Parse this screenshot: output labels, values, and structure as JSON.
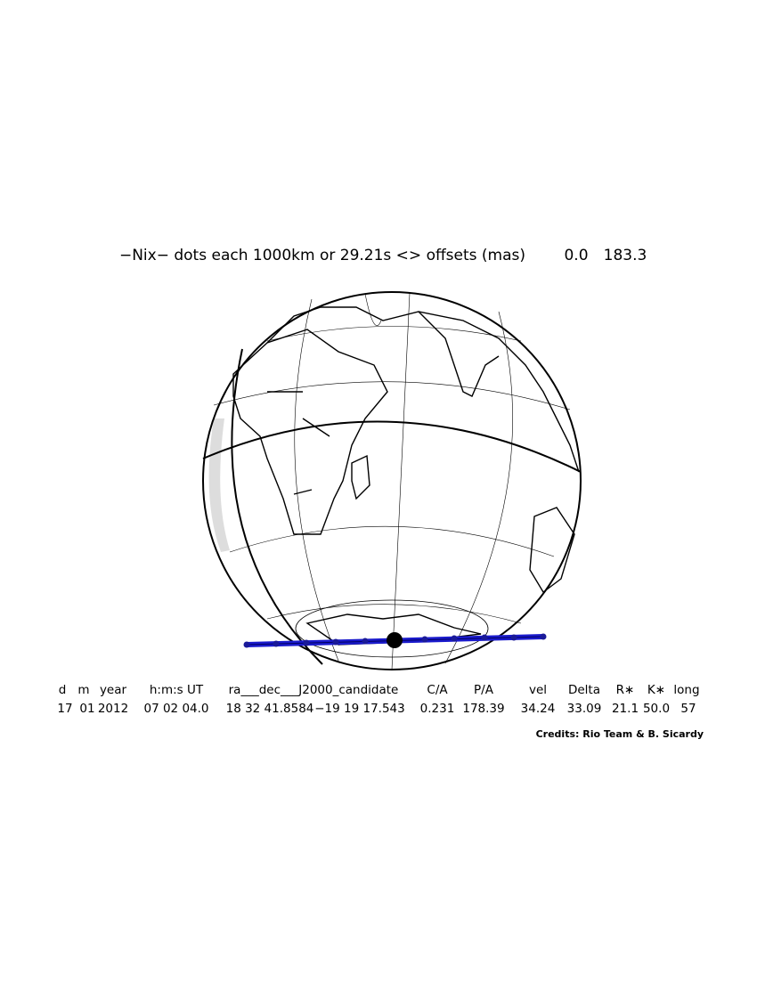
{
  "header": {
    "title": "−Nix− dots each 1000km or 29.21s <> offsets (mas)",
    "offsets": [
      "0.0",
      "183.3"
    ]
  },
  "table": {
    "columns": [
      "d",
      "m",
      "year",
      "h:m:s UT",
      "ra___dec___J2000_candidate",
      "C/A",
      "P/A",
      "vel",
      "Delta",
      "R∗",
      "K∗",
      "long"
    ],
    "values": [
      "17",
      "01",
      "2012",
      "07 02 04.0",
      "18 32 41.8584",
      "−19 19 17.543",
      "0.231",
      "178.39",
      "34.24",
      "33.09",
      "21.1",
      "50.0",
      "57"
    ]
  },
  "credits": "Credits: Rio Team & B. Sicardy"
}
